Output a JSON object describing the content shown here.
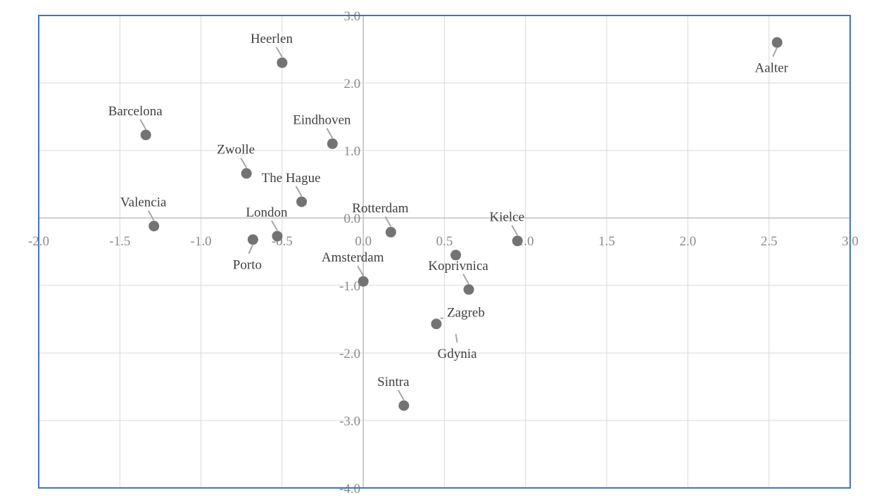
{
  "chart_data": {
    "type": "scatter",
    "title": "",
    "xlabel": "",
    "ylabel": "",
    "xlim": [
      -2.0,
      3.0
    ],
    "ylim": [
      -4.0,
      3.0
    ],
    "x_ticks": [
      "-2.0",
      "-1.5",
      "-1.0",
      "-0.5",
      "0.0",
      "0.5",
      "1.0",
      "1.5",
      "2.0",
      "2.5",
      "3.0"
    ],
    "y_ticks": [
      "3.0",
      "2.0",
      "1.0",
      "0.0",
      "-1.0",
      "-2.0",
      "-3.0",
      "-4.0"
    ],
    "grid": true,
    "colors": {
      "point": "#737373",
      "leader": "#a6a6a6",
      "grid": "#d9d9d9",
      "axis": "#bfbfbf",
      "frame": "#4472c4"
    },
    "points": [
      {
        "label": "Aalter",
        "x": 2.55,
        "y": 2.6,
        "label_pos": "below"
      },
      {
        "label": "Heerlen",
        "x": -0.5,
        "y": 2.3,
        "label_pos": "above"
      },
      {
        "label": "Barcelona",
        "x": -1.34,
        "y": 1.23,
        "label_pos": "above"
      },
      {
        "label": "Eindhoven",
        "x": -0.19,
        "y": 1.1,
        "label_pos": "above"
      },
      {
        "label": "Zwolle",
        "x": -0.72,
        "y": 0.66,
        "label_pos": "above"
      },
      {
        "label": "The Hague",
        "x": -0.38,
        "y": 0.24,
        "label_pos": "above"
      },
      {
        "label": "Valencia",
        "x": -1.29,
        "y": -0.12,
        "label_pos": "above"
      },
      {
        "label": "London",
        "x": -0.53,
        "y": -0.27,
        "label_pos": "above"
      },
      {
        "label": "Porto",
        "x": -0.68,
        "y": -0.32,
        "label_pos": "below"
      },
      {
        "label": "Rotterdam",
        "x": 0.17,
        "y": -0.21,
        "label_pos": "above"
      },
      {
        "label": "Kielce",
        "x": 0.95,
        "y": -0.34,
        "label_pos": "above"
      },
      {
        "label": "Amsterdam",
        "x": 0.0,
        "y": -0.94,
        "label_pos": "above"
      },
      {
        "label": "Koprivnica",
        "x": 0.65,
        "y": -1.06,
        "label_pos": "above"
      },
      {
        "label": "Zagreb",
        "x": 0.45,
        "y": -1.57,
        "label_pos": "above-right"
      },
      {
        "label": "Gdynia",
        "x": 0.57,
        "y": -0.55,
        "label_pos": "far-below"
      },
      {
        "label": "Sintra",
        "x": 0.25,
        "y": -2.78,
        "label_pos": "above"
      }
    ]
  }
}
